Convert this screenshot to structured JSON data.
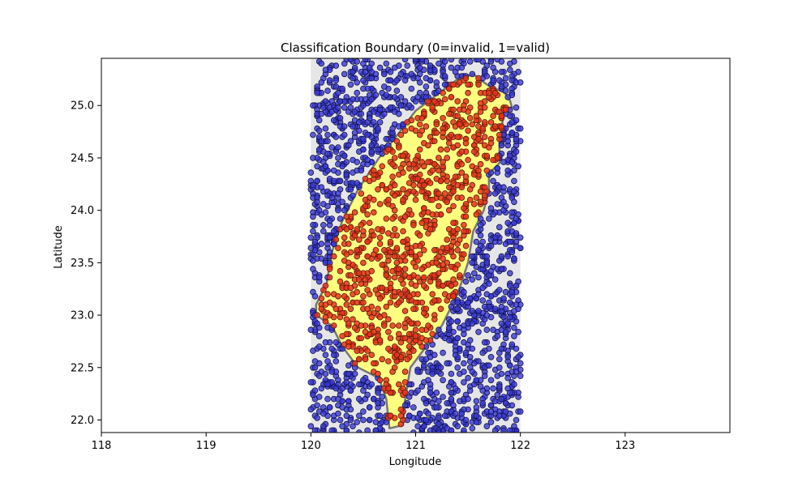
{
  "chart_data": {
    "type": "scatter",
    "title": "Classification Boundary (0=invalid, 1=valid)",
    "xlabel": "Longitude",
    "ylabel": "Latitude",
    "xlim": [
      118,
      124
    ],
    "ylim": [
      21.88,
      25.45
    ],
    "x_ticks": [
      "118",
      "119",
      "120",
      "121",
      "122",
      "123"
    ],
    "y_ticks": [
      "22.0",
      "22.5",
      "23.0",
      "23.5",
      "24.0",
      "24.5",
      "25.0"
    ],
    "x_tick_values": [
      118,
      119,
      120,
      121,
      122,
      123
    ],
    "y_tick_values": [
      22.0,
      22.5,
      23.0,
      23.5,
      24.0,
      24.5,
      25.0
    ],
    "grid": false,
    "legend": "none",
    "sample_region": {
      "lon": [
        120.0,
        122.0
      ],
      "lat": [
        21.88,
        25.45
      ]
    },
    "decision_regions": [
      {
        "label": "0",
        "color": "#e6e6e6"
      },
      {
        "label": "1",
        "color": "#ffff80"
      }
    ],
    "valid_region_boundary": [
      [
        121.55,
        25.3
      ],
      [
        121.68,
        25.2
      ],
      [
        121.85,
        25.12
      ],
      [
        121.9,
        25.05
      ],
      [
        121.92,
        24.98
      ],
      [
        121.85,
        24.95
      ],
      [
        121.83,
        24.85
      ],
      [
        121.8,
        24.6
      ],
      [
        121.8,
        24.45
      ],
      [
        121.7,
        24.35
      ],
      [
        121.7,
        24.2
      ],
      [
        121.65,
        24.0
      ],
      [
        121.55,
        23.8
      ],
      [
        121.5,
        23.5
      ],
      [
        121.4,
        23.2
      ],
      [
        121.25,
        22.9
      ],
      [
        121.1,
        22.7
      ],
      [
        120.95,
        22.5
      ],
      [
        120.9,
        22.2
      ],
      [
        120.88,
        21.95
      ],
      [
        120.75,
        21.92
      ],
      [
        120.72,
        22.2
      ],
      [
        120.65,
        22.4
      ],
      [
        120.45,
        22.5
      ],
      [
        120.3,
        22.7
      ],
      [
        120.2,
        22.9
      ],
      [
        120.05,
        23.0
      ],
      [
        120.05,
        23.1
      ],
      [
        120.15,
        23.3
      ],
      [
        120.2,
        23.6
      ],
      [
        120.3,
        23.9
      ],
      [
        120.45,
        24.2
      ],
      [
        120.65,
        24.5
      ],
      [
        120.85,
        24.75
      ],
      [
        121.0,
        24.95
      ],
      [
        121.2,
        25.1
      ],
      [
        121.4,
        25.25
      ]
    ],
    "series": [
      {
        "label": "0",
        "color": "#3a3ad6",
        "count": 1400
      },
      {
        "label": "1",
        "color": "#e8341a",
        "count": 900
      }
    ]
  }
}
